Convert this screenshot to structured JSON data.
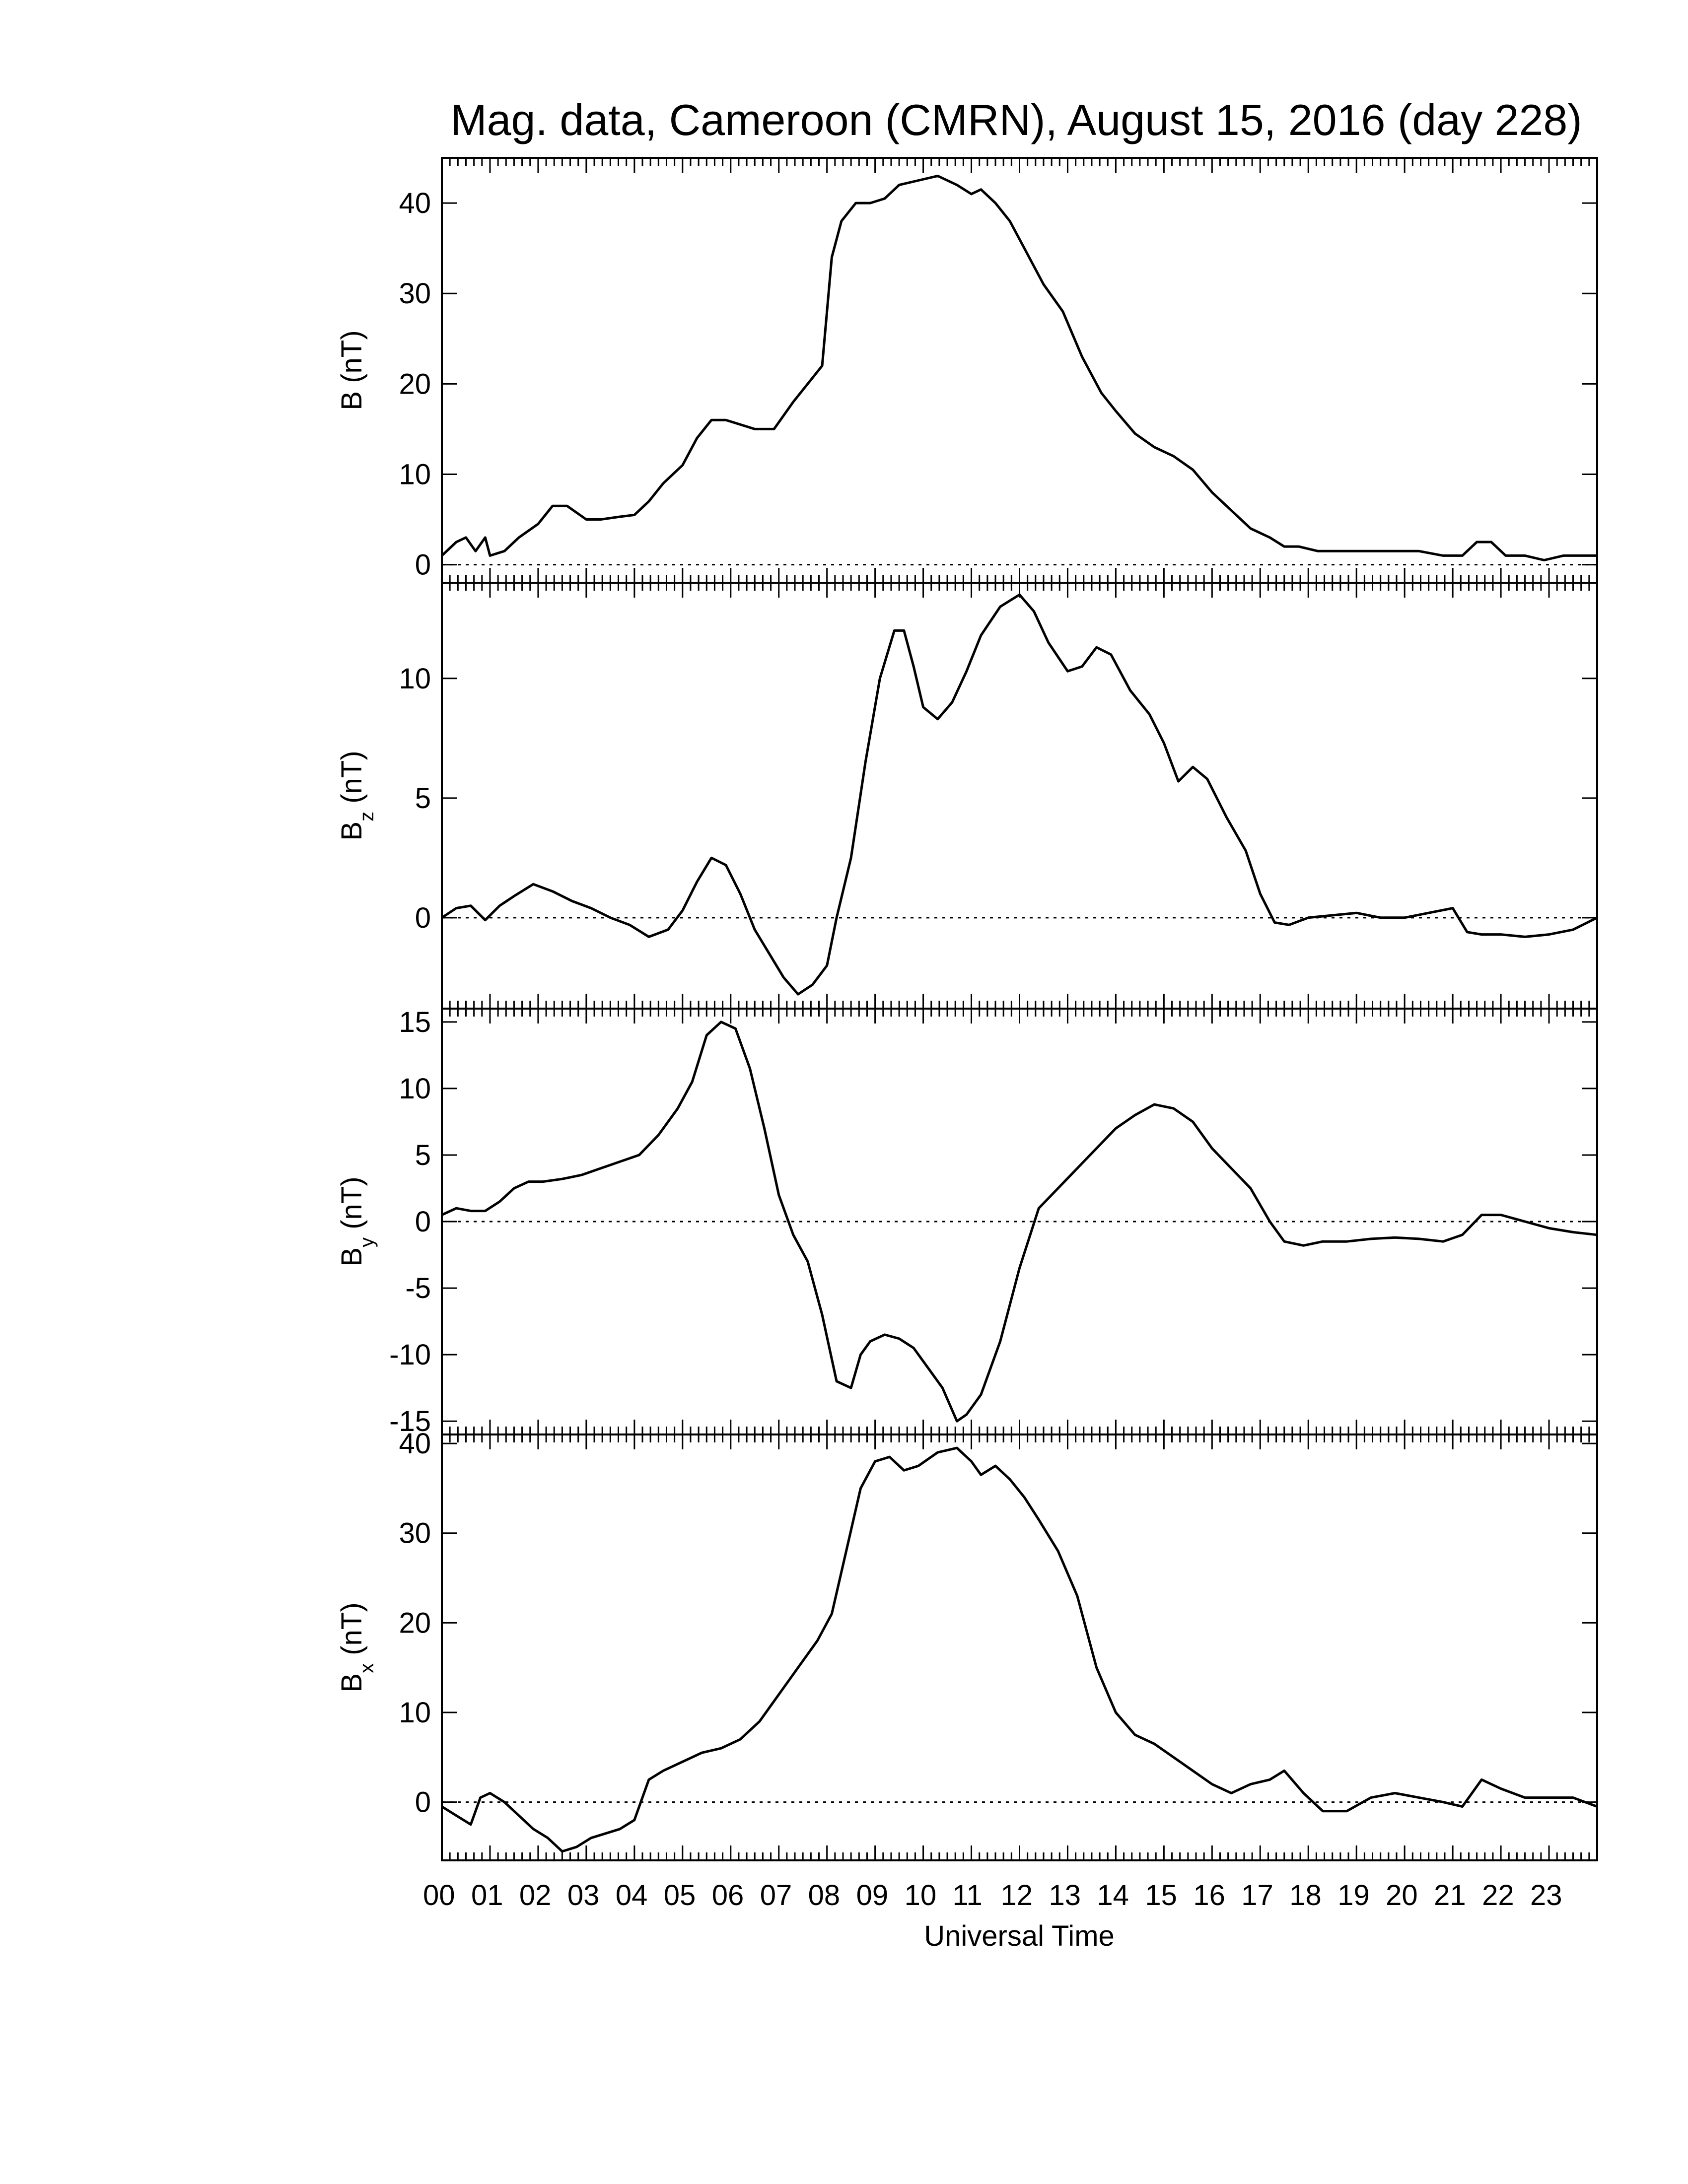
{
  "chart_data": {
    "type": "line",
    "title": "Mag. data, Cameroon (CMRN), August 15, 2016 (day 228)",
    "xlabel": "Universal Time",
    "xlim": [
      0,
      24
    ],
    "x_tick_labels": [
      "00",
      "01",
      "02",
      "03",
      "04",
      "05",
      "06",
      "07",
      "08",
      "09",
      "10",
      "11",
      "12",
      "13",
      "14",
      "15",
      "16",
      "17",
      "18",
      "19",
      "20",
      "21",
      "22",
      "23"
    ],
    "panels": [
      {
        "ylabel_main": "B",
        "ylabel_sub": "",
        "ylabel_unit": " (nT)",
        "ylim": [
          -2,
          45
        ],
        "yticks": [
          0,
          10,
          20,
          30,
          40
        ],
        "ytick_labels": [
          "0",
          "10",
          "20",
          "30",
          "40"
        ],
        "x": [
          0,
          0.3,
          0.5,
          0.7,
          0.9,
          1.0,
          1.3,
          1.6,
          2.0,
          2.3,
          2.6,
          3.0,
          3.3,
          3.7,
          4.0,
          4.3,
          4.6,
          5.0,
          5.3,
          5.6,
          5.9,
          6.2,
          6.5,
          6.9,
          7.3,
          7.6,
          7.9,
          8.1,
          8.3,
          8.6,
          8.9,
          9.2,
          9.5,
          9.9,
          10.3,
          10.7,
          11.0,
          11.2,
          11.5,
          11.8,
          12.1,
          12.5,
          12.9,
          13.3,
          13.7,
          14.0,
          14.4,
          14.8,
          15.2,
          15.6,
          16.0,
          16.4,
          16.8,
          17.2,
          17.5,
          17.8,
          18.2,
          18.7,
          19.2,
          19.8,
          20.3,
          20.8,
          21.2,
          21.5,
          21.8,
          22.1,
          22.5,
          22.9,
          23.3,
          23.7,
          24.0
        ],
        "y": [
          1,
          2.5,
          3,
          1.5,
          3,
          1,
          1.5,
          3,
          4.5,
          6.5,
          6.5,
          5,
          5,
          5.3,
          5.5,
          7,
          9,
          11,
          14,
          16,
          16,
          15.5,
          15,
          15,
          18,
          20,
          22,
          34,
          38,
          40,
          40,
          40.5,
          42,
          42.5,
          43,
          42,
          41,
          41.5,
          40,
          38,
          35,
          31,
          28,
          23,
          19,
          17,
          14.5,
          13,
          12,
          10.5,
          8,
          6,
          4,
          3,
          2,
          2,
          1.5,
          1.5,
          1.5,
          1.5,
          1.5,
          1,
          1,
          2.5,
          2.5,
          1,
          1,
          0.5,
          1,
          1,
          1
        ]
      },
      {
        "ylabel_main": "B",
        "ylabel_sub": "z",
        "ylabel_unit": " (nT)",
        "ylim": [
          -3.8,
          14
        ],
        "yticks": [
          0,
          5,
          10
        ],
        "ytick_labels": [
          "0",
          "5",
          "10"
        ],
        "x": [
          0,
          0.3,
          0.6,
          0.9,
          1.2,
          1.5,
          1.9,
          2.3,
          2.7,
          3.1,
          3.5,
          3.9,
          4.3,
          4.7,
          5.0,
          5.3,
          5.6,
          5.9,
          6.2,
          6.5,
          6.8,
          7.1,
          7.4,
          7.7,
          8.0,
          8.2,
          8.5,
          8.8,
          9.1,
          9.4,
          9.6,
          9.8,
          10.0,
          10.3,
          10.6,
          10.9,
          11.2,
          11.6,
          12.0,
          12.3,
          12.6,
          13.0,
          13.3,
          13.6,
          13.9,
          14.3,
          14.7,
          15.0,
          15.3,
          15.6,
          15.9,
          16.3,
          16.7,
          17.0,
          17.3,
          17.6,
          18.0,
          18.5,
          19.0,
          19.5,
          20.0,
          20.5,
          21.0,
          21.3,
          21.6,
          22.0,
          22.5,
          23.0,
          23.5,
          24.0
        ],
        "y": [
          0,
          0.4,
          0.5,
          -0.1,
          0.5,
          0.9,
          1.4,
          1.1,
          0.7,
          0.4,
          0,
          -0.3,
          -0.8,
          -0.5,
          0.3,
          1.5,
          2.5,
          2.2,
          1,
          -0.5,
          -1.5,
          -2.5,
          -3.2,
          -2.8,
          -2,
          0,
          2.5,
          6.5,
          10,
          12,
          12,
          10.5,
          8.8,
          8.3,
          9,
          10.3,
          11.8,
          13,
          13.5,
          12.8,
          11.5,
          10.3,
          10.5,
          11.3,
          11,
          9.5,
          8.5,
          7.3,
          5.7,
          6.3,
          5.8,
          4.2,
          2.8,
          1,
          -0.2,
          -0.3,
          0,
          0.1,
          0.2,
          0,
          0,
          0.2,
          0.4,
          -0.6,
          -0.7,
          -0.7,
          -0.8,
          -0.7,
          -0.5,
          0
        ]
      },
      {
        "ylabel_main": "B",
        "ylabel_sub": "y",
        "ylabel_unit": " (nT)",
        "ylim": [
          -16,
          16
        ],
        "yticks": [
          -15,
          -10,
          -5,
          0,
          5,
          10,
          15
        ],
        "ytick_labels": [
          "-15",
          "-10",
          "-5",
          "0",
          "5",
          "10",
          "15"
        ],
        "x": [
          0,
          0.3,
          0.6,
          0.9,
          1.2,
          1.5,
          1.8,
          2.1,
          2.5,
          2.9,
          3.3,
          3.7,
          4.1,
          4.5,
          4.9,
          5.2,
          5.5,
          5.8,
          6.1,
          6.4,
          6.7,
          7.0,
          7.3,
          7.6,
          7.9,
          8.2,
          8.5,
          8.7,
          8.9,
          9.2,
          9.5,
          9.8,
          10.1,
          10.4,
          10.7,
          10.9,
          11.2,
          11.6,
          12.0,
          12.4,
          12.8,
          13.2,
          13.6,
          14.0,
          14.4,
          14.8,
          15.2,
          15.6,
          16.0,
          16.4,
          16.8,
          17.2,
          17.5,
          17.9,
          18.3,
          18.8,
          19.3,
          19.8,
          20.3,
          20.8,
          21.2,
          21.6,
          22.0,
          22.5,
          23.0,
          23.5,
          24.0
        ],
        "y": [
          0.5,
          1,
          0.8,
          0.8,
          1.5,
          2.5,
          3,
          3,
          3.2,
          3.5,
          4,
          4.5,
          5,
          6.5,
          8.5,
          10.5,
          14,
          15,
          14.5,
          11.5,
          7,
          2,
          -1,
          -3,
          -7,
          -12,
          -12.5,
          -10,
          -9,
          -8.5,
          -8.8,
          -9.5,
          -11,
          -12.5,
          -15,
          -14.5,
          -13,
          -9,
          -3.5,
          1,
          2.5,
          4,
          5.5,
          7,
          8,
          8.8,
          8.5,
          7.5,
          5.5,
          4,
          2.5,
          0,
          -1.5,
          -1.8,
          -1.5,
          -1.5,
          -1.3,
          -1.2,
          -1.3,
          -1.5,
          -1,
          0.5,
          0.5,
          0,
          -0.5,
          -0.8,
          -1
        ]
      },
      {
        "ylabel_main": "B",
        "ylabel_sub": "x",
        "ylabel_unit": " (nT)",
        "ylim": [
          -6.5,
          41
        ],
        "yticks": [
          0,
          10,
          20,
          30,
          40
        ],
        "ytick_labels": [
          "0",
          "10",
          "20",
          "30",
          "40"
        ],
        "x": [
          0,
          0.3,
          0.6,
          0.8,
          1.0,
          1.3,
          1.6,
          1.9,
          2.2,
          2.5,
          2.8,
          3.1,
          3.4,
          3.7,
          4.0,
          4.3,
          4.6,
          5.0,
          5.4,
          5.8,
          6.2,
          6.6,
          7.0,
          7.4,
          7.8,
          8.1,
          8.4,
          8.7,
          9.0,
          9.3,
          9.6,
          9.9,
          10.3,
          10.7,
          11.0,
          11.2,
          11.5,
          11.8,
          12.1,
          12.4,
          12.8,
          13.2,
          13.6,
          14.0,
          14.4,
          14.8,
          15.2,
          15.6,
          16.0,
          16.4,
          16.8,
          17.2,
          17.5,
          17.9,
          18.3,
          18.8,
          19.3,
          19.8,
          20.3,
          20.8,
          21.2,
          21.6,
          22.0,
          22.5,
          23.0,
          23.5,
          24.0
        ],
        "y": [
          -0.5,
          -1.5,
          -2.5,
          0.5,
          1,
          0,
          -1.5,
          -3,
          -4,
          -5.5,
          -5,
          -4,
          -3.5,
          -3,
          -2,
          2.5,
          3.5,
          4.5,
          5.5,
          6,
          7,
          9,
          12,
          15,
          18,
          21,
          28,
          35,
          38,
          38.5,
          37,
          37.5,
          39,
          39.5,
          38,
          36.5,
          37.5,
          36,
          34,
          31.5,
          28,
          23,
          15,
          10,
          7.5,
          6.5,
          5,
          3.5,
          2,
          1,
          2,
          2.5,
          3.5,
          1,
          -1,
          -1,
          0.5,
          1,
          0.5,
          0,
          -0.5,
          2.5,
          1.5,
          0.5,
          0.5,
          0.5,
          -0.5
        ]
      }
    ]
  }
}
